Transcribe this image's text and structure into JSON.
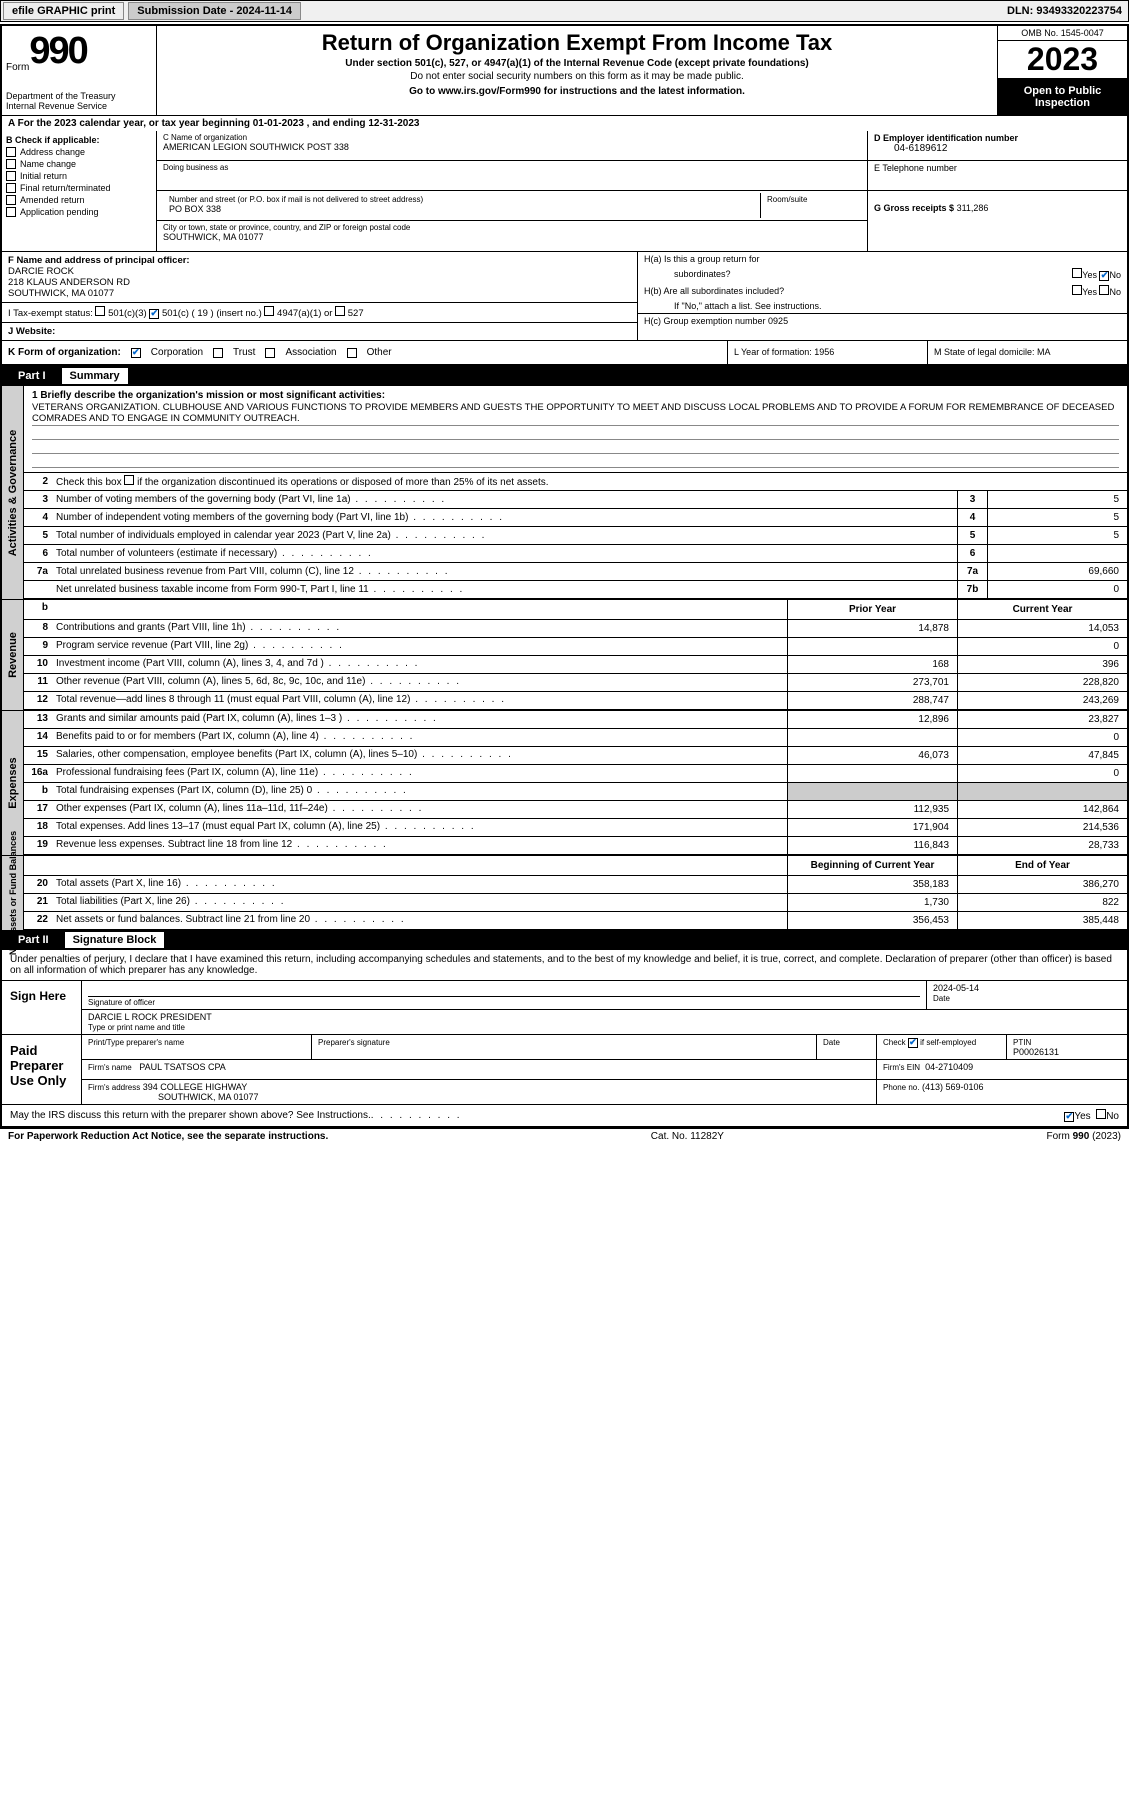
{
  "topbar": {
    "efile": "efile GRAPHIC print",
    "submission_label": "Submission Date - 2024-11-14",
    "dln": "DLN: 93493320223754"
  },
  "header": {
    "form_word": "Form",
    "form_num": "990",
    "dept": "Department of the Treasury",
    "irs": "Internal Revenue Service",
    "title": "Return of Organization Exempt From Income Tax",
    "sub": "Under section 501(c), 527, or 4947(a)(1) of the Internal Revenue Code (except private foundations)",
    "note1": "Do not enter social security numbers on this form as it may be made public.",
    "note2": "Go to www.irs.gov/Form990 for instructions and the latest information.",
    "omb": "OMB No. 1545-0047",
    "year": "2023",
    "public": "Open to Public Inspection"
  },
  "line_a": "A  For the 2023 calendar year, or tax year beginning 01-01-2023   , and ending 12-31-2023",
  "sec_b": {
    "label": "B Check if applicable:",
    "opts": [
      "Address change",
      "Name change",
      "Initial return",
      "Final return/terminated",
      "Amended return",
      "Application pending"
    ]
  },
  "sec_c": {
    "name_lbl": "C Name of organization",
    "name": "AMERICAN LEGION SOUTHWICK POST 338",
    "dba_lbl": "Doing business as",
    "dba": "",
    "addr_lbl": "Number and street (or P.O. box if mail is not delivered to street address)",
    "room_lbl": "Room/suite",
    "addr": "PO BOX 338",
    "city_lbl": "City or town, state or province, country, and ZIP or foreign postal code",
    "city": "SOUTHWICK, MA  01077"
  },
  "sec_d": {
    "ein_lbl": "D Employer identification number",
    "ein": "04-6189612",
    "phone_lbl": "E Telephone number",
    "phone": "",
    "gross_lbl": "G Gross receipts $",
    "gross": "311,286"
  },
  "sec_f": {
    "lbl": "F Name and address of principal officer:",
    "name": "DARCIE ROCK",
    "addr1": "218 KLAUS ANDERSON RD",
    "addr2": "SOUTHWICK, MA  01077"
  },
  "sec_h": {
    "a": "H(a)  Is this a group return for",
    "a2": "subordinates?",
    "b": "H(b)  Are all subordinates included?",
    "b2": "If \"No,\" attach a list. See instructions.",
    "c": "H(c)  Group exemption number   0925",
    "yes": "Yes",
    "no": "No"
  },
  "sec_i": {
    "lbl": "I    Tax-exempt status:",
    "o1": "501(c)(3)",
    "o2": "501(c) ( 19 ) (insert no.)",
    "o3": "4947(a)(1) or",
    "o4": "527"
  },
  "sec_j": {
    "lbl": "J   Website:",
    "val": ""
  },
  "sec_k": {
    "lbl": "K Form of organization:",
    "corp": "Corporation",
    "trust": "Trust",
    "assoc": "Association",
    "other": "Other"
  },
  "sec_l": {
    "lbl": "L Year of formation: 1956"
  },
  "sec_m": {
    "lbl": "M State of legal domicile: MA"
  },
  "part1": {
    "num": "Part I",
    "title": "Summary",
    "line1_lbl": "1   Briefly describe the organization's mission or most significant activities:",
    "mission": "VETERANS ORGANIZATION. CLUBHOUSE AND VARIOUS FUNCTIONS TO PROVIDE MEMBERS AND GUESTS THE OPPORTUNITY TO MEET AND DISCUSS LOCAL PROBLEMS AND TO PROVIDE A FORUM FOR REMEMBRANCE OF DECEASED COMRADES AND TO ENGAGE IN COMMUNITY OUTREACH.",
    "side_gov": "Activities & Governance",
    "side_rev": "Revenue",
    "side_exp": "Expenses",
    "side_net": "Net Assets or Fund Balances",
    "lines_single": [
      {
        "n": "2",
        "t": "Check this box      if the organization discontinued its operations or disposed of more than 25% of its net assets.",
        "box": "",
        "v": ""
      },
      {
        "n": "3",
        "t": "Number of voting members of the governing body (Part VI, line 1a)",
        "box": "3",
        "v": "5"
      },
      {
        "n": "4",
        "t": "Number of independent voting members of the governing body (Part VI, line 1b)",
        "box": "4",
        "v": "5"
      },
      {
        "n": "5",
        "t": "Total number of individuals employed in calendar year 2023 (Part V, line 2a)",
        "box": "5",
        "v": "5"
      },
      {
        "n": "6",
        "t": "Total number of volunteers (estimate if necessary)",
        "box": "6",
        "v": ""
      },
      {
        "n": "7a",
        "t": "Total unrelated business revenue from Part VIII, column (C), line 12",
        "box": "7a",
        "v": "69,660"
      },
      {
        "n": "",
        "t": "Net unrelated business taxable income from Form 990-T, Part I, line 11",
        "box": "7b",
        "v": "0"
      }
    ],
    "hdr_b": "b",
    "col_prior": "Prior Year",
    "col_curr": "Current Year",
    "lines_rev": [
      {
        "n": "8",
        "t": "Contributions and grants (Part VIII, line 1h)",
        "p": "14,878",
        "c": "14,053"
      },
      {
        "n": "9",
        "t": "Program service revenue (Part VIII, line 2g)",
        "p": "",
        "c": "0"
      },
      {
        "n": "10",
        "t": "Investment income (Part VIII, column (A), lines 3, 4, and 7d )",
        "p": "168",
        "c": "396"
      },
      {
        "n": "11",
        "t": "Other revenue (Part VIII, column (A), lines 5, 6d, 8c, 9c, 10c, and 11e)",
        "p": "273,701",
        "c": "228,820"
      },
      {
        "n": "12",
        "t": "Total revenue—add lines 8 through 11 (must equal Part VIII, column (A), line 12)",
        "p": "288,747",
        "c": "243,269"
      }
    ],
    "lines_exp": [
      {
        "n": "13",
        "t": "Grants and similar amounts paid (Part IX, column (A), lines 1–3 )",
        "p": "12,896",
        "c": "23,827"
      },
      {
        "n": "14",
        "t": "Benefits paid to or for members (Part IX, column (A), line 4)",
        "p": "",
        "c": "0"
      },
      {
        "n": "15",
        "t": "Salaries, other compensation, employee benefits (Part IX, column (A), lines 5–10)",
        "p": "46,073",
        "c": "47,845"
      },
      {
        "n": "16a",
        "t": "Professional fundraising fees (Part IX, column (A), line 11e)",
        "p": "",
        "c": "0"
      },
      {
        "n": "b",
        "t": "Total fundraising expenses (Part IX, column (D), line 25) 0",
        "p": "GRAY",
        "c": "GRAY"
      },
      {
        "n": "17",
        "t": "Other expenses (Part IX, column (A), lines 11a–11d, 11f–24e)",
        "p": "112,935",
        "c": "142,864"
      },
      {
        "n": "18",
        "t": "Total expenses. Add lines 13–17 (must equal Part IX, column (A), line 25)",
        "p": "171,904",
        "c": "214,536"
      },
      {
        "n": "19",
        "t": "Revenue less expenses. Subtract line 18 from line 12",
        "p": "116,843",
        "c": "28,733"
      }
    ],
    "col_beg": "Beginning of Current Year",
    "col_end": "End of Year",
    "lines_net": [
      {
        "n": "20",
        "t": "Total assets (Part X, line 16)",
        "p": "358,183",
        "c": "386,270"
      },
      {
        "n": "21",
        "t": "Total liabilities (Part X, line 26)",
        "p": "1,730",
        "c": "822"
      },
      {
        "n": "22",
        "t": "Net assets or fund balances. Subtract line 21 from line 20",
        "p": "356,453",
        "c": "385,448"
      }
    ]
  },
  "part2": {
    "num": "Part II",
    "title": "Signature Block",
    "intro": "Under penalties of perjury, I declare that I have examined this return, including accompanying schedules and statements, and to the best of my knowledge and belief, it is true, correct, and complete. Declaration of preparer (other than officer) is based on all information of which preparer has any knowledge.",
    "sign_here": "Sign Here",
    "sig_officer_lbl": "Signature of officer",
    "sig_date_lbl": "Date",
    "sig_date": "2024-05-14",
    "officer": "DARCIE L ROCK PRESIDENT",
    "type_lbl": "Type or print name and title",
    "paid": "Paid Preparer Use Only",
    "prep_name_lbl": "Print/Type preparer's name",
    "prep_sig_lbl": "Preparer's signature",
    "prep_date_lbl": "Date",
    "check_lbl": "Check        if self-employed",
    "ptin_lbl": "PTIN",
    "ptin": "P00026131",
    "firm_name_lbl": "Firm's name",
    "firm_name": "PAUL TSATSOS CPA",
    "firm_ein_lbl": "Firm's EIN",
    "firm_ein": "04-2710409",
    "firm_addr_lbl": "Firm's address",
    "firm_addr": "394 COLLEGE HIGHWAY",
    "firm_city": "SOUTHWICK, MA  01077",
    "phone_lbl": "Phone no.",
    "phone": "(413) 569-0106",
    "discuss": "May the IRS discuss this return with the preparer shown above? See Instructions.",
    "yes": "Yes",
    "no": "No"
  },
  "footer": {
    "pra": "For Paperwork Reduction Act Notice, see the separate instructions.",
    "cat": "Cat. No. 11282Y",
    "form": "Form 990 (2023)"
  }
}
